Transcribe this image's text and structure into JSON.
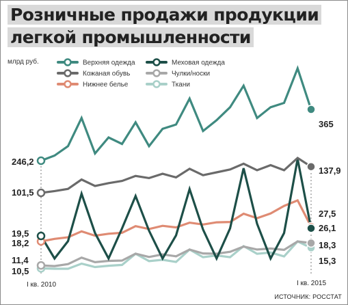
{
  "title": {
    "line1": "Розничные продажи продукции",
    "line2": "легкой промышленности"
  },
  "unit_label": "млрд руб.",
  "source": "ИСТОЧНИК: РОССТАТ",
  "chart_data": {
    "type": "line",
    "x_start_label": "I кв. 2010",
    "x_end_label": "I кв. 2015",
    "x": [
      "I кв. 2010",
      "",
      "",
      "",
      "",
      "",
      "",
      "",
      "",
      "",
      "",
      "",
      "",
      "",
      "",
      "",
      "",
      "",
      "",
      "",
      "I кв. 2015"
    ],
    "series": [
      {
        "name": "Верхняя одежда",
        "color": "#3f8a80",
        "legend_col": 0,
        "legend_row": 0,
        "values": [
          246.2,
          258,
          280,
          345,
          263,
          300,
          285,
          335,
          280,
          320,
          330,
          390,
          315,
          340,
          370,
          420,
          345,
          370,
          380,
          460,
          365
        ],
        "start_label": "246,2",
        "end_label": "365"
      },
      {
        "name": "Меховая одежда",
        "color": "#1d4f48",
        "legend_col": 1,
        "legend_row": 0,
        "values": [
          19.5,
          0,
          15,
          56,
          22,
          0,
          26,
          54,
          24,
          0,
          20,
          60,
          25,
          0,
          26,
          78,
          30,
          0,
          22,
          86,
          26.1
        ],
        "start_label": "",
        "end_label": "26,1"
      },
      {
        "name": "Кожаная обувь",
        "color": "#6a6a6a",
        "legend_col": 0,
        "legend_row": 1,
        "values": [
          101.5,
          104,
          107,
          120,
          111,
          115,
          118,
          125,
          122,
          128,
          123,
          135,
          126,
          130,
          134,
          142,
          133,
          140,
          133,
          150,
          137.9
        ],
        "start_label": "101,5",
        "end_label": "137,9"
      },
      {
        "name": "Чулки/носки",
        "color": "#a8a8a8",
        "legend_col": 1,
        "legend_row": 1,
        "values": [
          11.4,
          11.2,
          11.8,
          13.8,
          12.4,
          12.8,
          12.9,
          15,
          14,
          14.8,
          14.2,
          16.3,
          15.1,
          15,
          15.6,
          17.2,
          16.3,
          16.6,
          16.2,
          18.8,
          18.3
        ],
        "start_label": "11,4",
        "end_label": "18,3"
      },
      {
        "name": "Нижнее белье",
        "color": "#df8b73",
        "legend_col": 0,
        "legend_row": 2,
        "values": [
          18.2,
          19.8,
          20.8,
          24.5,
          21.8,
          23,
          23.6,
          27.8,
          26,
          28,
          27,
          30,
          28.8,
          30.2,
          30.4,
          35.6,
          32.8,
          35.8,
          40.5,
          44,
          27.5
        ],
        "start_label": "18,2",
        "end_label": "27,5"
      },
      {
        "name": "Ткани",
        "color": "#a9d0c9",
        "legend_col": 1,
        "legend_row": 2,
        "values": [
          10.5,
          10.4,
          10.4,
          11.6,
          10.8,
          11.1,
          11.3,
          13.9,
          12.2,
          12.5,
          12,
          14.9,
          13.1,
          13.5,
          13.1,
          15.7,
          13.9,
          14.2,
          13.3,
          16.8,
          15.3
        ],
        "start_label": "10,5",
        "end_label": "15,3"
      }
    ]
  }
}
